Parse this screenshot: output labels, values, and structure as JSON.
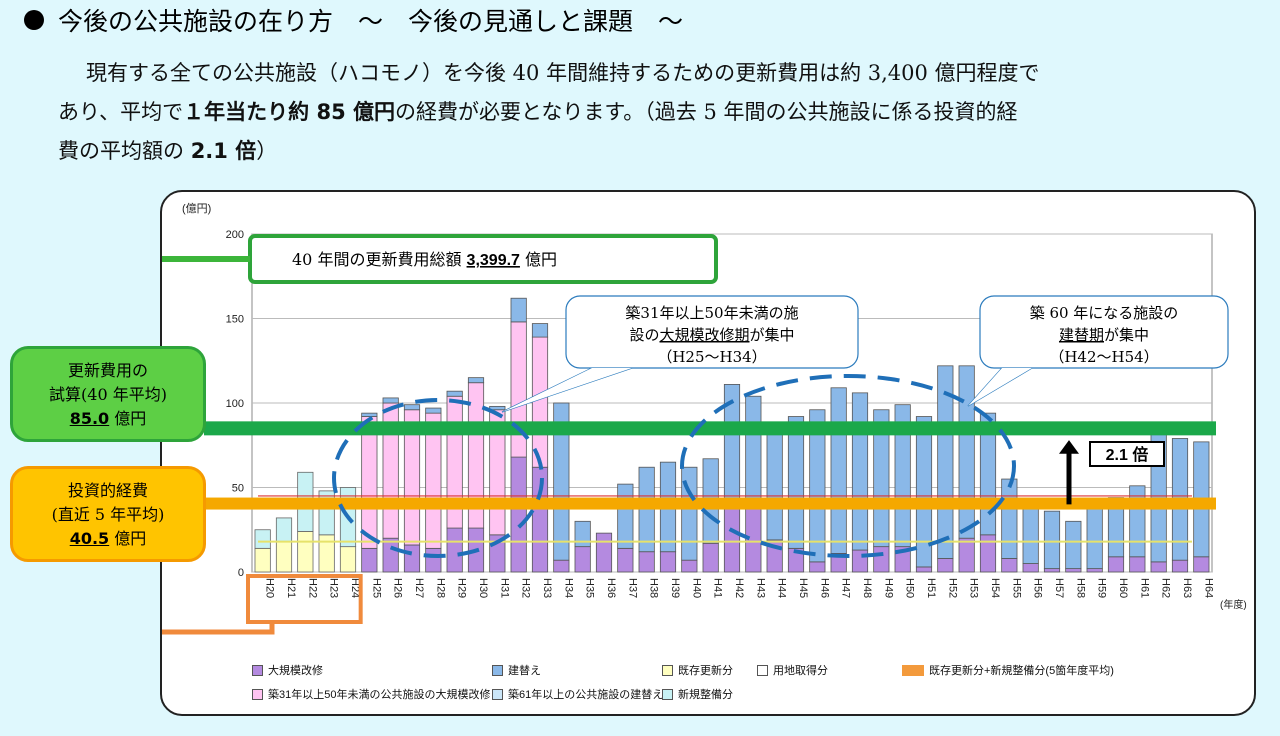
{
  "heading": {
    "title": "今後の公共施設の在り方　～　今後の見通しと課題　～"
  },
  "intro": {
    "line1": "現有する全ての公共施設（ハコモノ）を今後 40 年間維持するための更新費用は約 3,400 億円程度で",
    "line2a": "あり、平均で",
    "line2b": "１年当たり約 85 億円",
    "line2c": "の経費が必要となります。（過去 5 年間の公共施設に係る投資的経",
    "line3a": "費の平均額の ",
    "line3b": "2.1 倍",
    "line3c": "）"
  },
  "total_box": {
    "label": "40 年間の更新費用総額",
    "value": "3,399.7",
    "unit": "億円"
  },
  "callout_left": {
    "l1": "築31年以上50年未満の施",
    "l2a": "設の",
    "l2b": "大規模改修期",
    "l2c": "が集中",
    "l3": "（H25～H34）"
  },
  "callout_right": {
    "l1": "築 60 年になる施設の",
    "l2b": "建替期",
    "l2c": "が集中",
    "l3": "（H42～H54）"
  },
  "ratio_label": "2.1 倍",
  "renewal_box": {
    "l1": "更新費用の",
    "l2": "試算(40 年平均)",
    "value": "85.0",
    "unit": "億円"
  },
  "invest_box": {
    "l1": "投資的経費",
    "l2": "(直近 5 年平均)",
    "value": "40.5",
    "unit": "億円"
  },
  "legend": [
    {
      "label": "大規模改修",
      "color": "#b48ae0"
    },
    {
      "label": "建替え",
      "color": "#8ab8e8"
    },
    {
      "label": "既存更新分",
      "color": "#ffffc0"
    },
    {
      "label": "用地取得分",
      "color": "#ffffff"
    },
    {
      "label": "既存更新分+新規整備分(5箇年度平均)",
      "color": "#f39a3c"
    },
    {
      "label": "築31年以上50年未満の公共施設の大規模改修",
      "color": "#ffc4f2"
    },
    {
      "label": "築61年以上の公共施設の建替え",
      "color": "#cbe6f8"
    },
    {
      "label": "新規整備分",
      "color": "#c8f2f4"
    }
  ],
  "chart_data": {
    "type": "bar",
    "ylabel": "(億円)",
    "xlabel": "(年度)",
    "ylim": [
      0,
      200
    ],
    "yticks": [
      0,
      50,
      100,
      150,
      200
    ],
    "categories": [
      "H20",
      "H21",
      "H22",
      "H23",
      "H24",
      "H25",
      "H26",
      "H27",
      "H28",
      "H29",
      "H30",
      "H31",
      "H32",
      "H33",
      "H34",
      "H35",
      "H36",
      "H37",
      "H38",
      "H39",
      "H40",
      "H41",
      "H42",
      "H43",
      "H44",
      "H45",
      "H46",
      "H47",
      "H48",
      "H49",
      "H50",
      "H51",
      "H52",
      "H53",
      "H54",
      "H55",
      "H56",
      "H57",
      "H58",
      "H59",
      "H60",
      "H61",
      "H62",
      "H63",
      "H64"
    ],
    "past_series": [
      {
        "name": "既存更新分",
        "values": [
          14,
          18,
          24,
          22,
          15
        ]
      },
      {
        "name": "新規整備分",
        "values": [
          11,
          14,
          35,
          26,
          35
        ]
      }
    ],
    "series": [
      {
        "name": "大規模改修",
        "values": [
          0,
          0,
          0,
          0,
          0,
          14,
          20,
          16,
          14,
          26,
          26,
          22,
          68,
          62,
          7,
          15,
          23,
          14,
          12,
          12,
          7,
          17,
          38,
          38,
          19,
          14,
          6,
          11,
          13,
          15,
          15,
          3,
          8,
          20,
          22,
          8,
          5,
          2,
          2,
          2,
          9,
          9,
          6,
          7,
          9
        ]
      },
      {
        "name": "築31年以上50年未満の公共施設の大規模改修",
        "values": [
          0,
          0,
          0,
          0,
          0,
          78,
          80,
          80,
          80,
          78,
          86,
          74,
          80,
          77,
          0,
          0,
          0,
          0,
          0,
          0,
          0,
          0,
          0,
          0,
          0,
          0,
          0,
          0,
          0,
          0,
          0,
          0,
          0,
          0,
          0,
          0,
          0,
          0,
          0,
          0,
          0,
          0,
          0,
          0,
          0
        ]
      },
      {
        "name": "建替え",
        "values": [
          0,
          0,
          0,
          0,
          0,
          2,
          3,
          3,
          3,
          3,
          3,
          2,
          14,
          8,
          93,
          15,
          0,
          38,
          50,
          53,
          55,
          50,
          73,
          66,
          68,
          78,
          90,
          98,
          93,
          81,
          84,
          89,
          114,
          102,
          72,
          47,
          37,
          34,
          28,
          37,
          35,
          42,
          82,
          72,
          68
        ]
      },
      {
        "name": "築61年以上の公共施設の建替え",
        "values": [
          0,
          0,
          0,
          0,
          0,
          0,
          0,
          0,
          0,
          0,
          0,
          0,
          0,
          0,
          0,
          0,
          0,
          0,
          0,
          0,
          0,
          0,
          0,
          0,
          0,
          0,
          0,
          0,
          0,
          0,
          0,
          0,
          0,
          0,
          0,
          0,
          0,
          0,
          0,
          0,
          0,
          0,
          0,
          0,
          0
        ]
      }
    ],
    "reference_lines": [
      {
        "name": "更新費用の試算(40年平均)",
        "value": 85.0,
        "color": "#1ba84a"
      },
      {
        "name": "投資的経費(直近5年平均)",
        "value": 40.5,
        "color": "#f5a800"
      }
    ]
  }
}
